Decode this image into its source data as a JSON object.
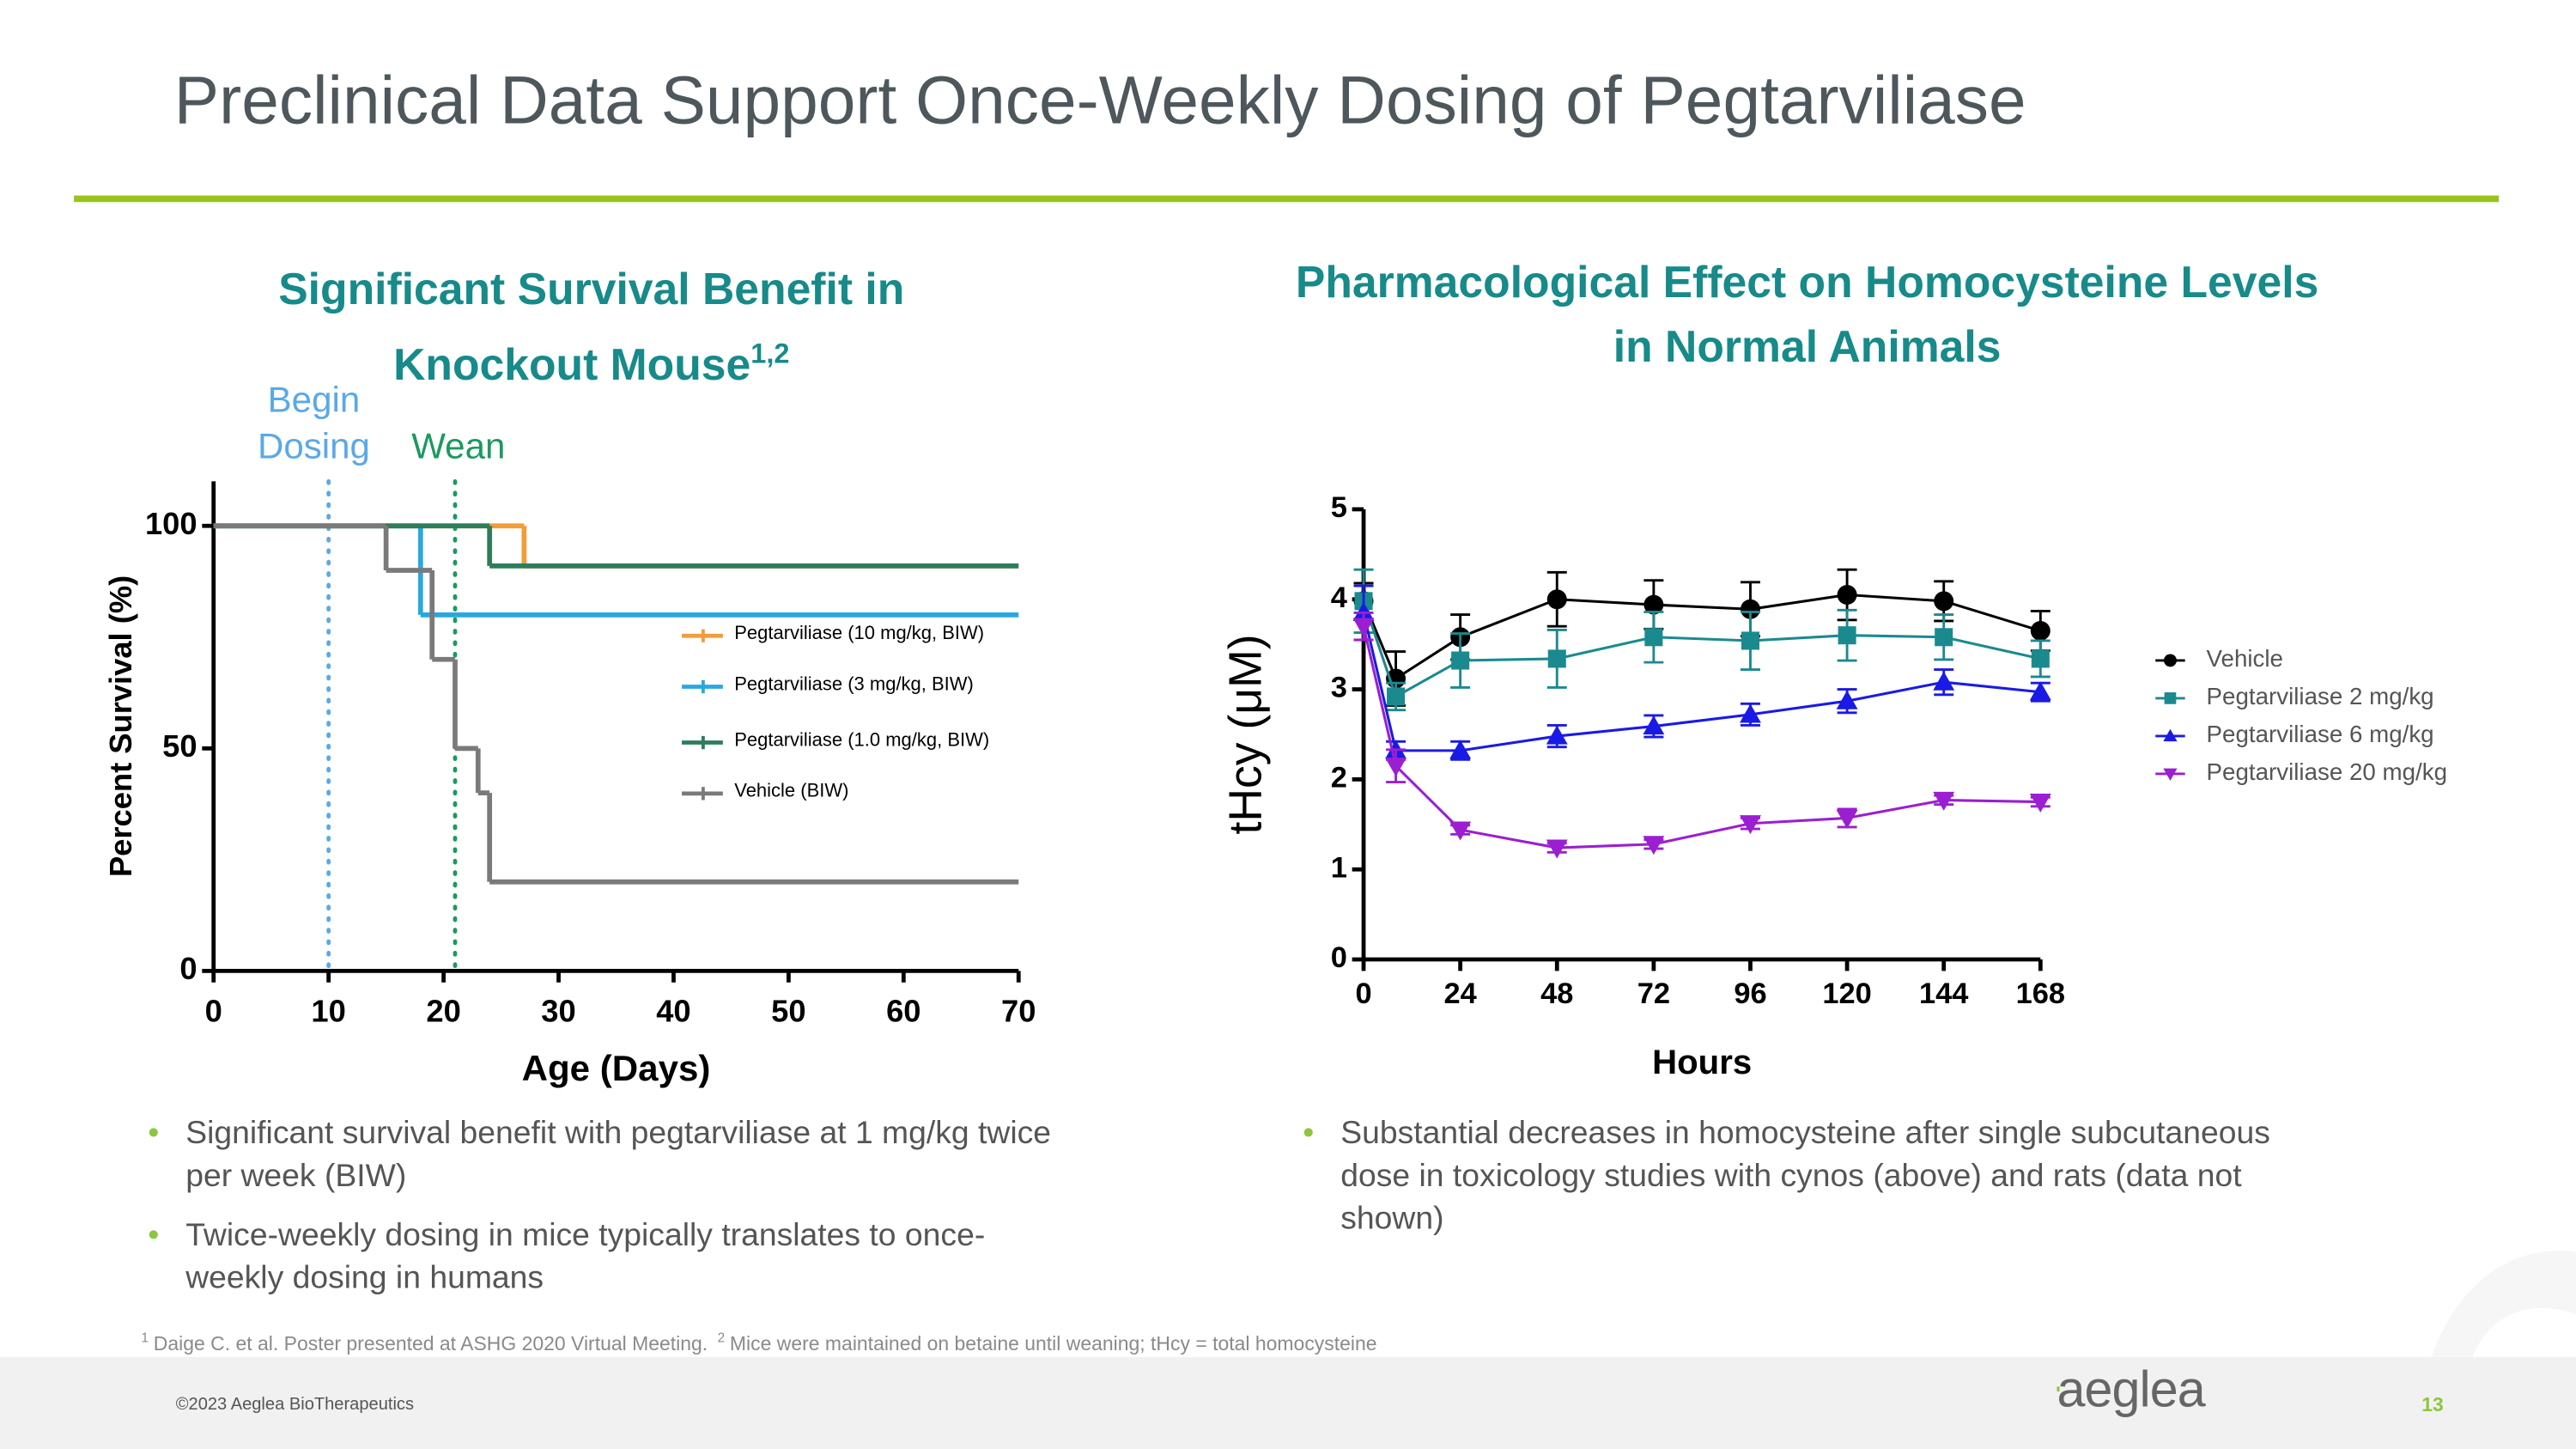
{
  "title": "Preclinical Data Support Once-Weekly Dosing of Pegtarviliase",
  "chart_data": [
    {
      "type": "line",
      "step": true,
      "title": "Significant Survival Benefit in Knockout Mouse",
      "title_superscript": "1,2",
      "xlabel": "Age (Days)",
      "ylabel": "Percent Survival (%)",
      "xlim": [
        0,
        70
      ],
      "ylim": [
        0,
        110
      ],
      "xticks": [
        0,
        10,
        20,
        30,
        40,
        50,
        60,
        70
      ],
      "yticks": [
        0,
        50,
        100
      ],
      "legend": "center-right",
      "series": [
        {
          "name": "Pegtarviliase (10 mg/kg, BIW)",
          "color": "#f39c38",
          "x": [
            0,
            27
          ],
          "values": [
            100,
            91
          ]
        },
        {
          "name": "Pegtarviliase (3 mg/kg, BIW)",
          "color": "#29a8e0",
          "x": [
            0,
            18
          ],
          "values": [
            100,
            80
          ]
        },
        {
          "name": "Pegtarviliase (1.0 mg/kg, BIW)",
          "color": "#2e7d5b",
          "x": [
            0,
            24
          ],
          "values": [
            100,
            91
          ]
        },
        {
          "name": "Vehicle (BIW)",
          "color": "#7a7a7a",
          "x": [
            0,
            15,
            19,
            21,
            23,
            24
          ],
          "values": [
            100,
            90,
            70,
            50,
            40,
            20
          ]
        }
      ],
      "annotations": [
        {
          "lines": [
            "Begin",
            "Dosing"
          ],
          "x": 10,
          "color": "#5aa9e6"
        },
        {
          "lines": [
            "Wean"
          ],
          "x": 21,
          "color": "#1a9a60"
        }
      ]
    },
    {
      "type": "line",
      "errorbars": true,
      "title": "Pharmacological Effect on Homocysteine Levels in Normal Animals",
      "xlabel": "Hours",
      "ylabel": "tHcy (μM)",
      "xlim": [
        0,
        168
      ],
      "ylim": [
        0,
        5
      ],
      "xticks": [
        0,
        24,
        48,
        72,
        96,
        120,
        144,
        168
      ],
      "yticks": [
        0,
        1,
        2,
        3,
        4,
        5
      ],
      "legend": "right",
      "x": [
        0,
        8,
        24,
        48,
        72,
        96,
        120,
        144,
        168
      ],
      "series": [
        {
          "name": "Vehicle",
          "color": "#000000",
          "marker": "circle",
          "values": [
            3.98,
            3.12,
            3.58,
            4.0,
            3.94,
            3.89,
            4.05,
            3.98,
            3.65
          ],
          "errors": [
            0.2,
            0.3,
            0.25,
            0.3,
            0.27,
            0.3,
            0.28,
            0.22,
            0.22
          ]
        },
        {
          "name": "Pegtarviliase 2 mg/kg",
          "color": "#1b8a8f",
          "marker": "square",
          "values": [
            3.98,
            2.92,
            3.32,
            3.34,
            3.58,
            3.54,
            3.6,
            3.58,
            3.34
          ],
          "errors": [
            0.35,
            0.15,
            0.3,
            0.32,
            0.28,
            0.32,
            0.28,
            0.25,
            0.2
          ]
        },
        {
          "name": "Pegtarviliase 6 mg/kg",
          "color": "#1a1ae6",
          "marker": "triangle-up",
          "values": [
            3.85,
            2.32,
            2.32,
            2.48,
            2.59,
            2.72,
            2.87,
            3.08,
            2.97
          ],
          "errors": [
            0.3,
            0.1,
            0.1,
            0.12,
            0.12,
            0.12,
            0.13,
            0.14,
            0.1
          ]
        },
        {
          "name": "Pegtarviliase 20 mg/kg",
          "color": "#9b1fd0",
          "marker": "triangle-down",
          "values": [
            3.7,
            2.15,
            1.44,
            1.24,
            1.28,
            1.51,
            1.57,
            1.77,
            1.75
          ],
          "errors": [
            0.15,
            0.18,
            0.05,
            0.05,
            0.05,
            0.06,
            0.1,
            0.05,
            0.05
          ]
        }
      ]
    }
  ],
  "left_bullets": [
    "Significant survival benefit with pegtarviliase at 1 mg/kg twice per week (BIW)",
    "Twice-weekly dosing in mice typically translates to once-weekly dosing in humans"
  ],
  "right_bullets": [
    "Substantial decreases in homocysteine after single subcutaneous dose in toxicology studies with cynos (above) and rats (data not shown)"
  ],
  "footnotes": [
    {
      "marker": "1",
      "text": "Daige C. et al. Poster presented at ASHG 2020 Virtual Meeting."
    },
    {
      "marker": "2",
      "text": "Mice were maintained on betaine until weaning; tHcy = total homocysteine"
    }
  ],
  "copyright": "©2023 Aeglea BioTherapeutics",
  "logo": "aeglea",
  "page_number": "13"
}
